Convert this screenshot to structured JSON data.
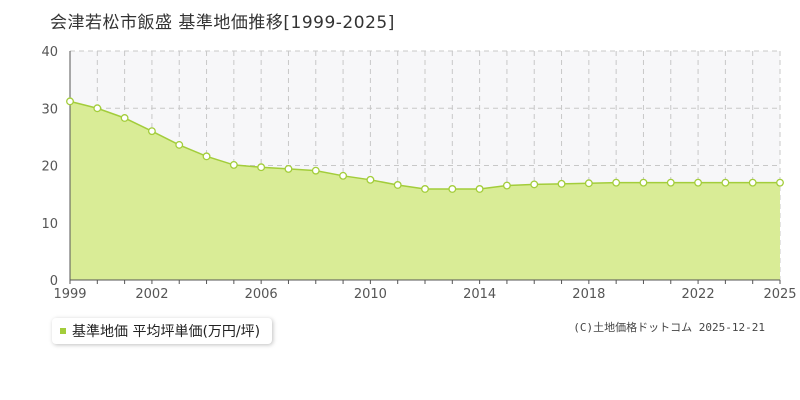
{
  "header": {
    "title": "会津若松市飯盛 基準地価推移[1999-2025]"
  },
  "legend": {
    "label": "基準地価 平均坪単価(万円/坪)",
    "color": "#a3cd3b"
  },
  "credit": "(C)土地価格ドットコム 2025-12-21",
  "chart_data": {
    "type": "area",
    "title": "会津若松市飯盛 基準地価推移[1999-2025]",
    "xlabel": "",
    "ylabel": "",
    "xlim": [
      1999,
      2025
    ],
    "ylim": [
      0,
      40
    ],
    "x_tick_labels": [
      "1999",
      "2002",
      "2006",
      "2010",
      "2014",
      "2018",
      "2022",
      "2025"
    ],
    "y_tick_labels": [
      "0",
      "10",
      "20",
      "30",
      "40"
    ],
    "grid": true,
    "legend_position": "bottom-left",
    "series": [
      {
        "name": "基準地価 平均坪単価(万円/坪)",
        "color": "#a3cd3b",
        "fill": "#d9ec96",
        "x": [
          1999,
          2000,
          2001,
          2002,
          2003,
          2004,
          2005,
          2006,
          2007,
          2008,
          2009,
          2010,
          2011,
          2012,
          2013,
          2014,
          2015,
          2016,
          2017,
          2018,
          2019,
          2020,
          2021,
          2022,
          2023,
          2024,
          2025
        ],
        "values": [
          31.2,
          30.0,
          28.3,
          26.0,
          23.6,
          21.6,
          20.1,
          19.7,
          19.4,
          19.1,
          18.2,
          17.5,
          16.6,
          15.9,
          15.9,
          15.9,
          16.5,
          16.7,
          16.8,
          16.9,
          17.0,
          17.0,
          17.0,
          17.0,
          17.0,
          17.0,
          17.0
        ]
      }
    ]
  }
}
